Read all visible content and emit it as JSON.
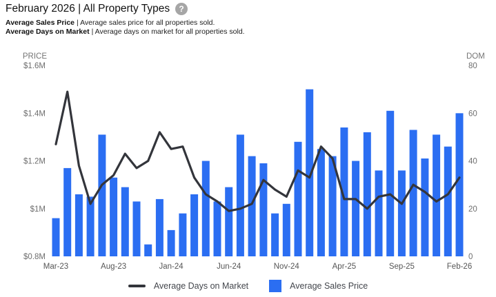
{
  "header": {
    "title": "February 2026 | All Property Types",
    "help_icon": "?",
    "series_descriptions": [
      {
        "name": "Average Sales Price",
        "rest": "| Average sales price for all properties sold."
      },
      {
        "name": "Average Days on Market",
        "rest": "| Average days on market for all properties sold."
      }
    ]
  },
  "chart_data": {
    "type": "bar",
    "subtype": "bar-plus-line-dual-axis",
    "categories": [
      "Mar-23",
      "Apr-23",
      "May-23",
      "Jun-23",
      "Jul-23",
      "Aug-23",
      "Sep-23",
      "Oct-23",
      "Nov-23",
      "Dec-23",
      "Jan-24",
      "Feb-24",
      "Mar-24",
      "Apr-24",
      "May-24",
      "Jun-24",
      "Jul-24",
      "Aug-24",
      "Sep-24",
      "Oct-24",
      "Nov-24",
      "Dec-24",
      "Jan-25",
      "Feb-25",
      "Mar-25",
      "Apr-25",
      "May-25",
      "Jun-25",
      "Jul-25",
      "Aug-25",
      "Sep-25",
      "Oct-25",
      "Nov-25",
      "Dec-25",
      "Jan-26",
      "Feb-26"
    ],
    "x_tick_labels": [
      "Mar-23",
      "Aug-23",
      "Jan-24",
      "Jun-24",
      "Nov-24",
      "Apr-25",
      "Sep-25",
      "Feb-26"
    ],
    "series": [
      {
        "name": "Average Sales Price",
        "type": "bar",
        "axis": "left",
        "unit": "$M",
        "values": [
          0.96,
          1.17,
          1.06,
          1.05,
          1.31,
          1.13,
          1.09,
          1.03,
          0.85,
          1.04,
          0.91,
          0.98,
          1.06,
          1.2,
          1.03,
          1.09,
          1.31,
          1.22,
          1.19,
          0.98,
          1.02,
          1.28,
          1.5,
          1.25,
          1.22,
          1.34,
          1.2,
          1.32,
          1.16,
          1.41,
          1.16,
          1.33,
          1.21,
          1.31,
          1.26,
          1.4
        ]
      },
      {
        "name": "Average Days on Market",
        "type": "line",
        "axis": "right",
        "unit": "days",
        "values": [
          47,
          69,
          38,
          22,
          30,
          34,
          43,
          37,
          40,
          52,
          45,
          46,
          33,
          26,
          23,
          19,
          20,
          22,
          32,
          28,
          25,
          36,
          33,
          46,
          41,
          24,
          24,
          20,
          25,
          26,
          22,
          30,
          27,
          23,
          26,
          33
        ]
      }
    ],
    "left_axis": {
      "title": "PRICE",
      "ticks": [
        "$1.6M",
        "$1.4M",
        "$1.2M",
        "$1M",
        "$0.8M"
      ],
      "min": 0.8,
      "max": 1.6
    },
    "right_axis": {
      "title": "DOM",
      "ticks": [
        "80",
        "60",
        "40",
        "20",
        "0"
      ],
      "min": 0,
      "max": 80
    },
    "grid": false,
    "legend_position": "bottom"
  },
  "legend": {
    "items": [
      {
        "label": "Average Days on Market",
        "swatch": "line"
      },
      {
        "label": "Average Sales Price",
        "swatch": "square"
      }
    ]
  },
  "colors": {
    "bar": "#2b6ef2",
    "line": "#33353b",
    "axis_tick_text": "#6e6e6e",
    "axis_title_text": "#757575",
    "x_label_text": "#555555",
    "legend_text": "#43464c",
    "title_text": "#111111",
    "help_icon_bg": "#a6a6a6"
  }
}
